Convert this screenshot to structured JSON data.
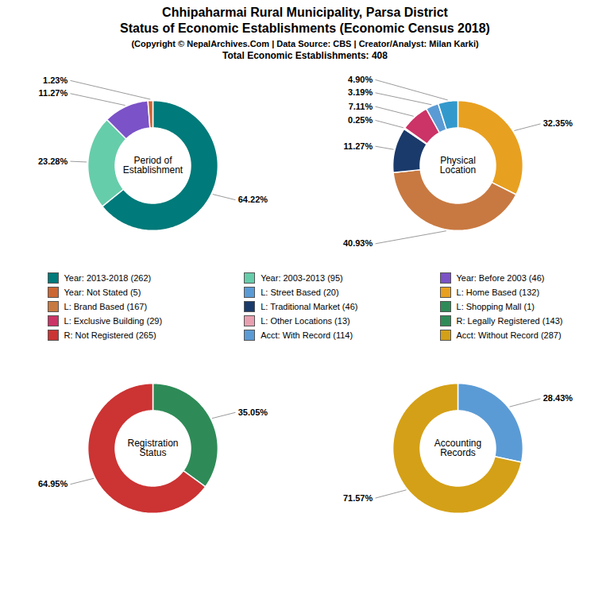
{
  "title": "Chhipaharmai Rural Municipality, Parsa District\nStatus of Economic Establishments (Economic Census 2018)",
  "subtitle": "(Copyright © NepalArchives.Com | Data Source: CBS | Creator/Analyst: Milan Karki)",
  "annotations": [
    "Total Economic Establishments: 408"
  ],
  "legend_columns": [
    [
      {
        "label": "Year: 2013-2018 (262)",
        "color": "#007a7a"
      },
      {
        "label": "Year: Not Stated (5)",
        "color": "#cc6633"
      },
      {
        "label": "L: Brand Based (167)",
        "color": "#c87941"
      },
      {
        "label": "L: Exclusive Building (29)",
        "color": "#cc3366"
      },
      {
        "label": "R: Not Registered (265)",
        "color": "#cc3333"
      }
    ],
    [
      {
        "label": "Year: 2003-2013 (95)",
        "color": "#66cdaa"
      },
      {
        "label": "L: Street Based (20)",
        "color": "#5b9bd5"
      },
      {
        "label": "L: Traditional Market (46)",
        "color": "#1a3a6b"
      },
      {
        "label": "L: Other Locations (13)",
        "color": "#e8a0b0"
      },
      {
        "label": "Acct: With Record (114)",
        "color": "#5b9bd5"
      }
    ],
    [
      {
        "label": "Year: Before 2003 (46)",
        "color": "#7b52c7"
      },
      {
        "label": "L: Home Based (132)",
        "color": "#e8a020"
      },
      {
        "label": "L: Shopping Mall (1)",
        "color": "#2e8b57"
      },
      {
        "label": "R: Legally Registered (143)",
        "color": "#2e8b57"
      },
      {
        "label": "Acct: Without Record (287)",
        "color": "#d4a017"
      }
    ]
  ],
  "chart_data": [
    {
      "type": "pie",
      "title": "Period of\nEstablishment",
      "values": [
        64.22,
        23.28,
        11.27,
        1.23
      ],
      "colors": [
        "#007a7a",
        "#66cdaa",
        "#7b52c7",
        "#cc6633"
      ],
      "value_labels": [
        "64.22%",
        "23.28%",
        "11.27%",
        "1.23%"
      ],
      "data_labels": true
    },
    {
      "type": "pie",
      "title": "Physical\nLocation",
      "values": [
        32.35,
        40.93,
        11.27,
        0.25,
        7.11,
        3.19,
        4.9
      ],
      "colors": [
        "#e8a020",
        "#c87941",
        "#1a3a6b",
        "#2e8b57",
        "#cc3366",
        "#5b9bd5",
        "#3399cc"
      ],
      "value_labels": [
        "32.35%",
        "40.93%",
        "11.27%",
        "0.25%",
        "7.11%",
        "3.19%",
        "4.90%"
      ],
      "data_labels": true
    },
    {
      "type": "pie",
      "title": "Registration\nStatus",
      "values": [
        35.05,
        64.95
      ],
      "colors": [
        "#2e8b57",
        "#cc3333"
      ],
      "value_labels": [
        "35.05%",
        "64.95%"
      ],
      "data_labels": true
    },
    {
      "type": "pie",
      "title": "Accounting\nRecords",
      "values": [
        28.43,
        71.57
      ],
      "colors": [
        "#5b9bd5",
        "#d4a017"
      ],
      "value_labels": [
        "28.43%",
        "71.57%"
      ],
      "data_labels": true
    }
  ]
}
